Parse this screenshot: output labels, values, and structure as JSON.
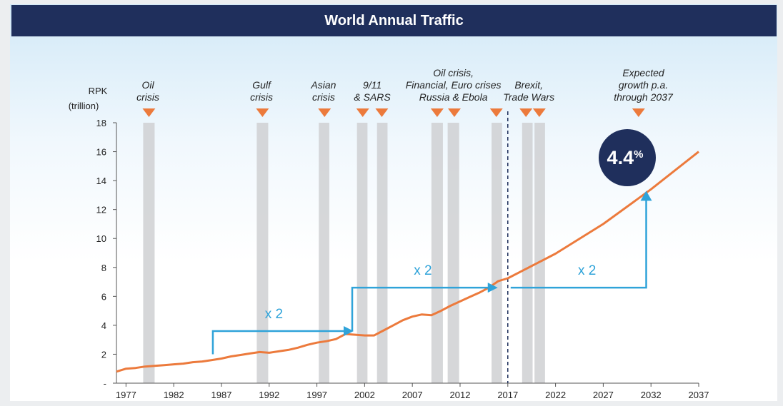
{
  "title": "World Annual Traffic",
  "colors": {
    "title_bg": "#1f2f5c",
    "line": "#ec7a3c",
    "arrow": "#2fa3d9",
    "crisis_band": "#cfd0d2",
    "marker": "#ec7a3c",
    "badge": "#1f2f5c",
    "divider": "#1f2f5c"
  },
  "chart_data": {
    "type": "line",
    "title": "World Annual Traffic",
    "ylabel": [
      "RPK",
      "(trillion)"
    ],
    "xlim": [
      1976,
      2037
    ],
    "ylim": [
      0,
      18
    ],
    "x_ticks": [
      1977,
      1982,
      1987,
      1992,
      1997,
      2002,
      2007,
      2012,
      2017,
      2022,
      2027,
      2032,
      2037
    ],
    "y_ticks": [
      {
        "value": 0,
        "label": "-"
      },
      {
        "value": 2,
        "label": "2"
      },
      {
        "value": 4,
        "label": "4"
      },
      {
        "value": 6,
        "label": "6"
      },
      {
        "value": 8,
        "label": "8"
      },
      {
        "value": 10,
        "label": "10"
      },
      {
        "value": 12,
        "label": "12"
      },
      {
        "value": 14,
        "label": "14"
      },
      {
        "value": 16,
        "label": "16"
      },
      {
        "value": 18,
        "label": "18"
      }
    ],
    "grid": false,
    "series": [
      {
        "values_history": [
          [
            1976,
            0.8
          ],
          [
            1977,
            1.0
          ],
          [
            1978,
            1.05
          ],
          [
            1979,
            1.15
          ],
          [
            1980,
            1.2
          ],
          [
            1981,
            1.25
          ],
          [
            1982,
            1.3
          ],
          [
            1983,
            1.35
          ],
          [
            1984,
            1.45
          ],
          [
            1985,
            1.5
          ],
          [
            1986,
            1.6
          ],
          [
            1987,
            1.7
          ],
          [
            1988,
            1.85
          ],
          [
            1989,
            1.95
          ],
          [
            1990,
            2.05
          ],
          [
            1991,
            2.15
          ],
          [
            1992,
            2.1
          ],
          [
            1993,
            2.2
          ],
          [
            1994,
            2.3
          ],
          [
            1995,
            2.45
          ],
          [
            1996,
            2.65
          ],
          [
            1997,
            2.8
          ],
          [
            1998,
            2.9
          ],
          [
            1999,
            3.05
          ],
          [
            2000,
            3.4
          ],
          [
            2001,
            3.35
          ],
          [
            2002,
            3.3
          ],
          [
            2003,
            3.3
          ],
          [
            2004,
            3.65
          ],
          [
            2005,
            4.0
          ],
          [
            2006,
            4.35
          ],
          [
            2007,
            4.6
          ],
          [
            2008,
            4.75
          ],
          [
            2009,
            4.7
          ],
          [
            2010,
            5.0
          ],
          [
            2011,
            5.35
          ],
          [
            2012,
            5.65
          ],
          [
            2013,
            5.95
          ],
          [
            2014,
            6.25
          ],
          [
            2015,
            6.6
          ],
          [
            2016,
            7.05
          ],
          [
            2017,
            7.25
          ]
        ],
        "values_forecast": [
          [
            2017,
            7.25
          ],
          [
            2022,
            8.95
          ],
          [
            2027,
            11.0
          ],
          [
            2032,
            13.4
          ],
          [
            2037,
            16.0
          ]
        ]
      }
    ],
    "crisis_periods": [
      {
        "start": 1978.8,
        "end": 1980.0
      },
      {
        "start": 1990.7,
        "end": 1991.9
      },
      {
        "start": 1997.2,
        "end": 1998.3
      },
      {
        "start": 2001.2,
        "end": 2002.3
      },
      {
        "start": 2003.3,
        "end": 2004.4
      },
      {
        "start": 2009.0,
        "end": 2010.2
      },
      {
        "start": 2010.7,
        "end": 2011.9
      },
      {
        "start": 2015.3,
        "end": 2016.4
      },
      {
        "start": 2018.5,
        "end": 2019.6
      },
      {
        "start": 2019.8,
        "end": 2020.9
      }
    ],
    "event_labels": [
      {
        "lines": [
          "Oil",
          "crisis"
        ],
        "x": 1979.3
      },
      {
        "lines": [
          "Gulf",
          "crisis"
        ],
        "x": 1991.2
      },
      {
        "lines": [
          "Asian",
          "crisis"
        ],
        "x": 1997.7
      },
      {
        "lines": [
          "9/11",
          "& SARS"
        ],
        "x": 2002.8
      },
      {
        "lines": [
          "Oil crisis,",
          "Financial, Euro crises",
          "Russia & Ebola"
        ],
        "x": 2011.3
      },
      {
        "lines": [
          "Brexit,",
          "Trade Wars"
        ],
        "x": 2019.2
      },
      {
        "lines": [
          "Expected",
          "growth p.a.",
          "through 2037"
        ],
        "x": 2031.2
      }
    ],
    "event_markers": [
      1979.4,
      1991.3,
      1997.8,
      2001.8,
      2003.8,
      2009.6,
      2011.4,
      2015.8,
      2018.9,
      2020.3,
      2030.7
    ],
    "divider_x": 2017,
    "doubling_annotations": [
      {
        "label": "x 2",
        "from": [
          1986.1,
          2.0
        ],
        "to_x": 2000.7,
        "to_y": 3.6,
        "label_at": [
          1992.5,
          4.5
        ]
      },
      {
        "label": "x 2",
        "from": [
          2000.7,
          3.6
        ],
        "to_x": 2015.8,
        "to_y": 6.6,
        "label_at": [
          2008.1,
          7.5
        ]
      },
      {
        "label": "x 2",
        "from": [
          2017.3,
          6.6
        ],
        "to_x": 2031.5,
        "to_y": 13.2,
        "label_at": [
          2025.3,
          7.5
        ]
      }
    ],
    "growth_badge": {
      "value": "4.4",
      "unit": "%"
    }
  }
}
